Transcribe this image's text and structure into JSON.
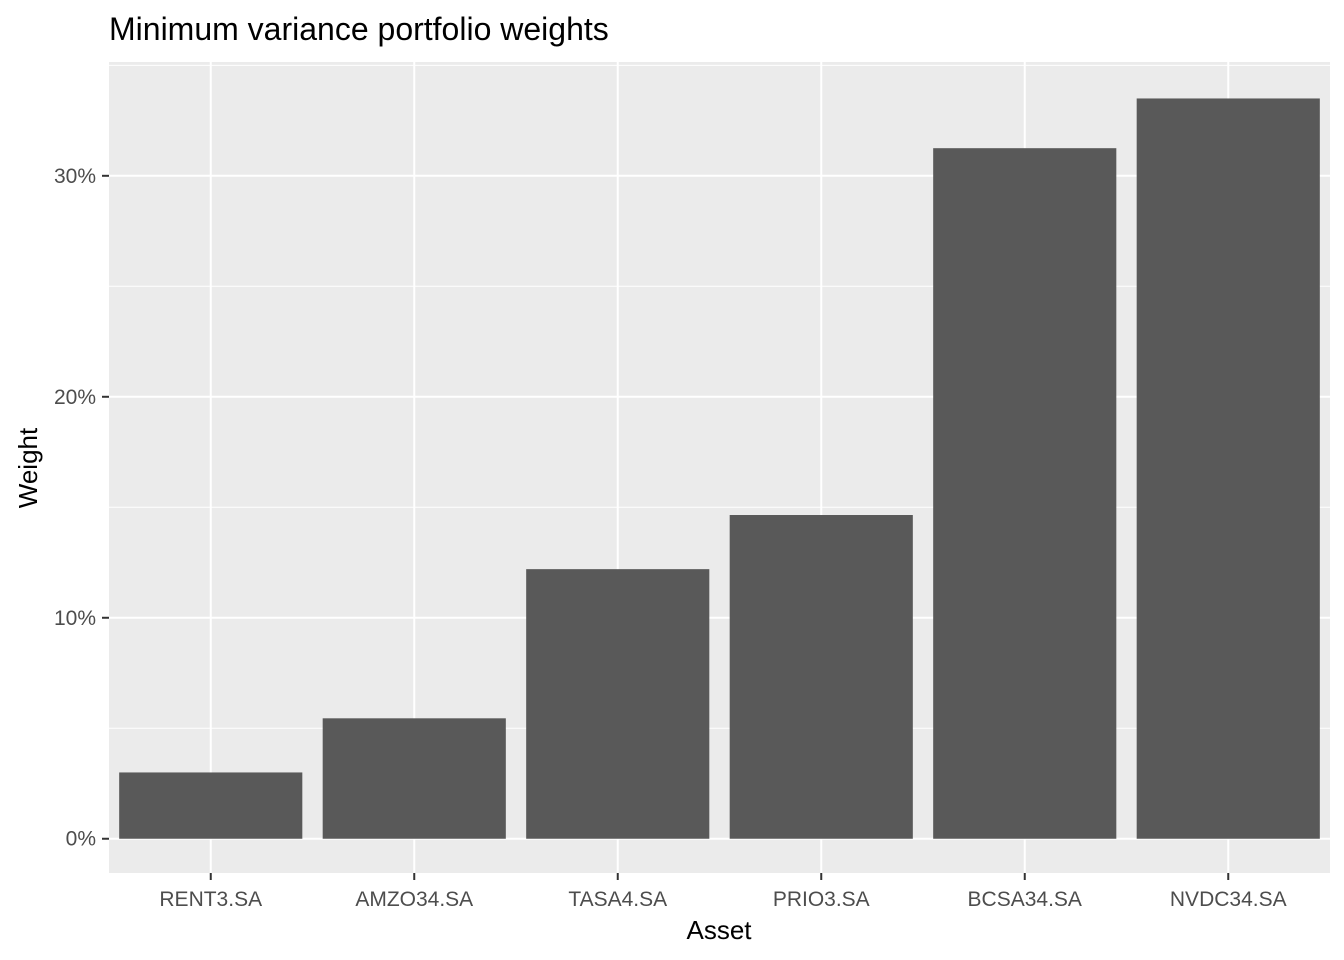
{
  "chart_data": {
    "type": "bar",
    "title": "Minimum variance portfolio weights",
    "xlabel": "Asset",
    "ylabel": "Weight",
    "categories": [
      "RENT3.SA",
      "AMZO34.SA",
      "TASA4.SA",
      "PRIO3.SA",
      "BCSA34.SA",
      "NVDC34.SA"
    ],
    "values": [
      0.03,
      0.0545,
      0.122,
      0.1465,
      0.3125,
      0.335
    ],
    "y_ticks": [
      0,
      0.1,
      0.2,
      0.3
    ],
    "y_tick_labels": [
      "0%",
      "10%",
      "20%",
      "30%"
    ],
    "ylim": [
      -0.0155,
      0.3515
    ],
    "grid": true,
    "legend": "none",
    "colors": {
      "panel_background": "#ebebeb",
      "grid": "#ffffff",
      "bar_fill": "#595959",
      "tick_label": "#4d4d4d",
      "tick_mark": "#333333"
    }
  }
}
